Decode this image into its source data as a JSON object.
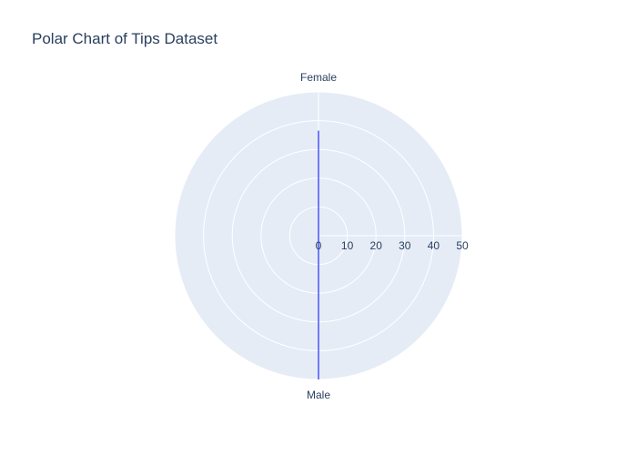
{
  "chart_data": {
    "type": "polar",
    "title": "Polar Chart of Tips Dataset",
    "angular_categories": [
      "Female",
      "Male"
    ],
    "radial_axis": {
      "range": [
        0,
        50
      ],
      "tickvals": [
        0,
        10,
        20,
        30,
        40,
        50
      ],
      "ticklabels": [
        "0",
        "10",
        "20",
        "30",
        "40",
        "50"
      ],
      "angle_degrees": 0
    },
    "series": [
      {
        "mode": "lines",
        "theta": [
          "Female",
          "Male"
        ],
        "r": [
          36.5,
          50
        ]
      }
    ],
    "grid": true,
    "colors": {
      "polar_background": "#E5ECF6",
      "grid": "#ffffff",
      "line": "#636efa",
      "text": "#2a3f5f"
    }
  }
}
